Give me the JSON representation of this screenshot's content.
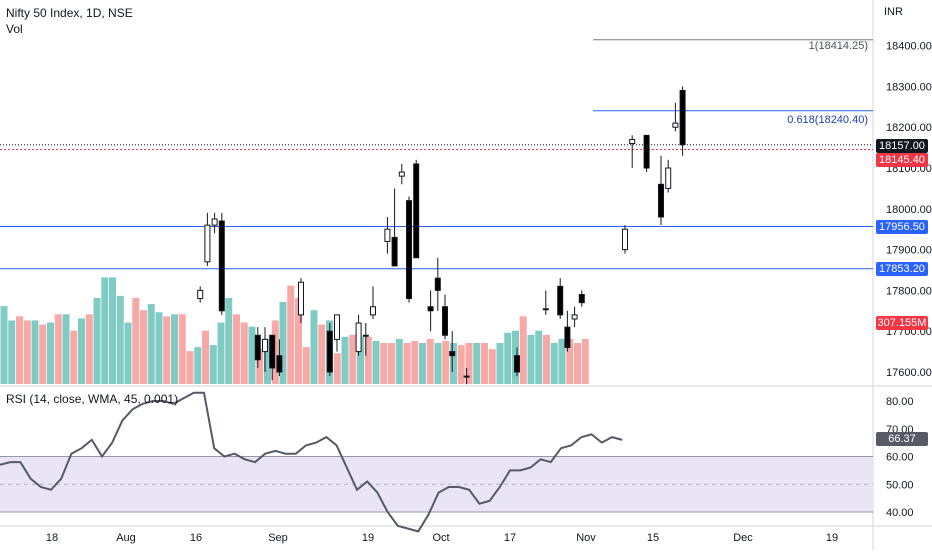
{
  "header": {
    "symbol_line": "Nifty 50 Index, 1D, NSE",
    "volume_label": "Vol",
    "currency": "INR"
  },
  "rsi": {
    "title": "RSI (14, close, WMA, 45, 0.001)",
    "current_value": "66.37"
  },
  "tags": {
    "last_price": "18157.00",
    "prev_line": "18145.40",
    "support_1": "17956.50",
    "support_2": "17853.20",
    "volume": "307.155M"
  },
  "fib_labels": {
    "level_1": "1(18414.25)",
    "level_0618": "0.618(18240.40)"
  },
  "colors": {
    "bull_body": "#ffffff",
    "bear_body": "#000000",
    "wick": "#131722",
    "vol_up": "#80cbc4",
    "vol_down": "#f7a9a7",
    "hline_blue": "#2962ff",
    "hline_red": "#f23645",
    "fib_gray": "#787b86",
    "rsi_line": "#555a66",
    "rsi_band": "#e9e5f6",
    "tag_black": "#131722"
  },
  "price_axis": {
    "ticks": [
      "18400.00",
      "18300.00",
      "18200.00",
      "18100.00",
      "18000.00",
      "17900.00",
      "17800.00",
      "17700.00",
      "17600.00"
    ]
  },
  "rsi_axis": {
    "ticks": [
      "80.00",
      "70.00",
      "60.00",
      "50.00",
      "40.00"
    ]
  },
  "time_axis": {
    "ticks": [
      "18",
      "Aug",
      "16",
      "Sep",
      "19",
      "Oct",
      "17",
      "Nov",
      "15",
      "Dec",
      "19"
    ]
  },
  "chart_data": {
    "type": "candlestick",
    "price_unit": "INR",
    "price_range": [
      17580,
      18470
    ],
    "horizontal_levels": [
      17956.5,
      17853.2,
      18145.4,
      18157.0
    ],
    "fib_levels": [
      18414.25,
      18240.4
    ],
    "volume": [
      38,
      31,
      33,
      31,
      31,
      29,
      30,
      34,
      34,
      26,
      32,
      34,
      42,
      52,
      52,
      43,
      30,
      42,
      36,
      39,
      35,
      33,
      34,
      34,
      16,
      18,
      26,
      19,
      30,
      42,
      34,
      30,
      28,
      17,
      22,
      31,
      40,
      48,
      42,
      18,
      36,
      29,
      31,
      15,
      23,
      24,
      23,
      23,
      21,
      20,
      20,
      22,
      20,
      21,
      20,
      22,
      20,
      21,
      20,
      19,
      20,
      20,
      20,
      17,
      20,
      25,
      26,
      33,
      24,
      26,
      24,
      20,
      22,
      22,
      20,
      22
    ],
    "volume_up": [
      true,
      true,
      false,
      false,
      true,
      false,
      true,
      false,
      true,
      false,
      true,
      false,
      true,
      true,
      true,
      true,
      true,
      false,
      false,
      true,
      true,
      false,
      true,
      false,
      false,
      true,
      false,
      true,
      true,
      true,
      false,
      false,
      true,
      false,
      true,
      false,
      true,
      false,
      false,
      false,
      true,
      false,
      true,
      false,
      true,
      false,
      true,
      false,
      true,
      false,
      false,
      true,
      false,
      false,
      true,
      false,
      true,
      false,
      true,
      false,
      false,
      true,
      false,
      false,
      true,
      true,
      true,
      false,
      true,
      true,
      false,
      true,
      true,
      false,
      false,
      false
    ],
    "candles": [
      {
        "o": 17780,
        "h": 17810,
        "l": 17770,
        "c": 17800
      },
      {
        "o": 17870,
        "h": 17990,
        "l": 17860,
        "c": 17960
      },
      {
        "o": 17960,
        "h": 17990,
        "l": 17940,
        "c": 17975
      },
      {
        "o": 17970,
        "h": 17990,
        "l": 17740,
        "c": 17750
      },
      {
        "o": 17690,
        "h": 17710,
        "l": 17610,
        "c": 17630
      },
      {
        "o": 17650,
        "h": 17710,
        "l": 17600,
        "c": 17680
      },
      {
        "o": 17690,
        "h": 17690,
        "l": 17580,
        "c": 17610
      },
      {
        "o": 17640,
        "h": 17680,
        "l": 17590,
        "c": 17600
      },
      {
        "o": 17740,
        "h": 17830,
        "l": 17720,
        "c": 17820
      },
      {
        "o": 17700,
        "h": 17720,
        "l": 17590,
        "c": 17600
      },
      {
        "o": 17680,
        "h": 17740,
        "l": 17650,
        "c": 17740
      },
      {
        "o": 17650,
        "h": 17740,
        "l": 17640,
        "c": 17720
      },
      {
        "o": 17690,
        "h": 17720,
        "l": 17640,
        "c": 17690
      },
      {
        "o": 17740,
        "h": 17810,
        "l": 17730,
        "c": 17760
      },
      {
        "o": 17920,
        "h": 17980,
        "l": 17890,
        "c": 17950
      },
      {
        "o": 17930,
        "h": 18050,
        "l": 17860,
        "c": 17860
      },
      {
        "o": 18080,
        "h": 18110,
        "l": 18060,
        "c": 18090
      },
      {
        "o": 18020,
        "h": 18030,
        "l": 17770,
        "c": 17780
      },
      {
        "o": 18110,
        "h": 18120,
        "l": 17880,
        "c": 17880
      },
      {
        "o": 17760,
        "h": 17800,
        "l": 17700,
        "c": 17750
      },
      {
        "o": 17830,
        "h": 17880,
        "l": 17750,
        "c": 17800
      },
      {
        "o": 17760,
        "h": 17790,
        "l": 17680,
        "c": 17690
      },
      {
        "o": 17650,
        "h": 17700,
        "l": 17600,
        "c": 17640
      },
      {
        "o": 17590,
        "h": 17610,
        "l": 17570,
        "c": 17590
      },
      {
        "o": 17640,
        "h": 17660,
        "l": 17590,
        "c": 17600
      },
      {
        "o": 17755,
        "h": 17800,
        "l": 17740,
        "c": 17755
      },
      {
        "o": 17810,
        "h": 17830,
        "l": 17730,
        "c": 17740
      },
      {
        "o": 17710,
        "h": 17750,
        "l": 17650,
        "c": 17660
      },
      {
        "o": 17730,
        "h": 17760,
        "l": 17710,
        "c": 17740
      },
      {
        "o": 17790,
        "h": 17800,
        "l": 17760,
        "c": 17770
      },
      {
        "o": 17900,
        "h": 17960,
        "l": 17890,
        "c": 17950
      },
      {
        "o": 18160,
        "h": 18180,
        "l": 18100,
        "c": 18170
      },
      {
        "o": 18180,
        "h": 18180,
        "l": 18090,
        "c": 18100
      },
      {
        "o": 18060,
        "h": 18130,
        "l": 17960,
        "c": 17980
      },
      {
        "o": 18050,
        "h": 18120,
        "l": 18040,
        "c": 18100
      },
      {
        "o": 18200,
        "h": 18260,
        "l": 18190,
        "c": 18210
      },
      {
        "o": 18290,
        "h": 18300,
        "l": 18130,
        "c": 18157
      }
    ],
    "candle_slot": [
      1,
      2,
      3,
      4,
      9,
      10,
      11,
      12,
      15,
      19,
      20,
      23,
      24,
      25,
      27,
      28,
      29,
      30,
      31,
      33,
      34,
      35,
      36,
      38,
      45,
      49,
      51,
      52,
      53,
      54,
      60,
      61,
      63,
      65,
      66,
      67,
      68
    ],
    "rsi": [
      57,
      58,
      58,
      52,
      49,
      48,
      52,
      61,
      63,
      66,
      60,
      65,
      73,
      77,
      79,
      80,
      80,
      79,
      81,
      83,
      83,
      63,
      60,
      61,
      59,
      58,
      61,
      62,
      61,
      61,
      64,
      65,
      67,
      64,
      56,
      48,
      51,
      47,
      40,
      35,
      34,
      33,
      39,
      47,
      49,
      49,
      48,
      43,
      44,
      49,
      55,
      55,
      56,
      59,
      58,
      63,
      64,
      67,
      68,
      65,
      67,
      66
    ],
    "rsi_x": [
      0,
      1,
      2,
      3,
      4,
      5,
      6,
      7,
      8,
      9,
      10,
      11,
      12,
      13,
      14,
      15,
      16,
      17,
      18,
      19,
      20,
      21,
      22,
      23,
      24,
      25,
      26,
      27,
      28,
      29,
      30,
      31,
      32,
      33,
      34,
      35,
      36,
      37,
      38,
      39,
      40,
      41,
      42,
      43,
      44,
      45,
      46,
      47,
      48,
      49,
      50,
      51,
      52,
      53,
      54,
      55,
      56,
      57,
      58,
      59,
      60,
      61
    ]
  }
}
